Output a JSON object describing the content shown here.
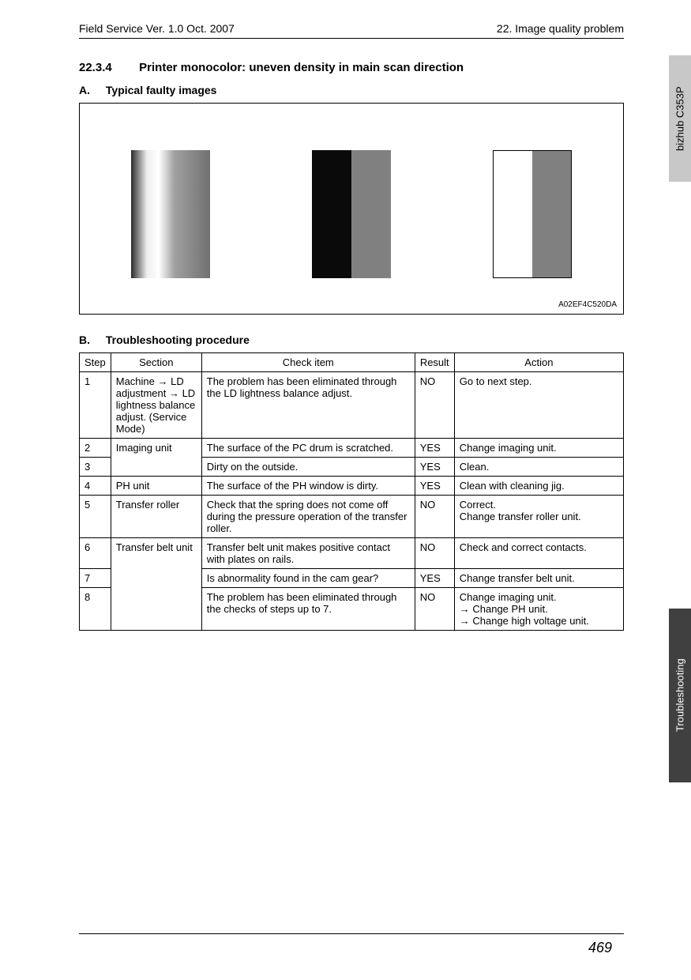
{
  "header": {
    "left": "Field Service Ver. 1.0 Oct. 2007",
    "right": "22. Image quality problem"
  },
  "section": {
    "number": "22.3.4",
    "title": "Printer monocolor: uneven density in main scan direction"
  },
  "subA": {
    "letter": "A.",
    "title": "Typical faulty images"
  },
  "subB": {
    "letter": "B.",
    "title": "Troubleshooting procedure"
  },
  "figure": {
    "code": "A02EF4C520DA"
  },
  "tabs": {
    "top": "bizhub C353P",
    "bottom": "Troubleshooting"
  },
  "pageNumber": "469",
  "table": {
    "headers": {
      "step": "Step",
      "section": "Section",
      "check": "Check item",
      "result": "Result",
      "action": "Action"
    },
    "rows": [
      {
        "step": "1",
        "section": "Machine → LD adjustment → LD lightness balance adjust. (Service Mode)",
        "check": "The problem has been eliminated through the LD lightness balance adjust.",
        "result": "NO",
        "action": "Go to next step."
      },
      {
        "step": "2",
        "section": "Imaging unit",
        "check": "The surface of the PC drum is scratched.",
        "result": "YES",
        "action": "Change imaging unit."
      },
      {
        "step": "3",
        "section": "",
        "check": "Dirty on the outside.",
        "result": "YES",
        "action": "Clean."
      },
      {
        "step": "4",
        "section": "PH unit",
        "check": "The surface of the PH window is dirty.",
        "result": "YES",
        "action": "Clean with cleaning jig."
      },
      {
        "step": "5",
        "section": "Transfer roller",
        "check": "Check that the spring does not come off during the pressure operation of the transfer roller.",
        "result": "NO",
        "action": "Correct.\nChange transfer roller unit."
      },
      {
        "step": "6",
        "section": "Transfer belt unit",
        "check": "Transfer belt unit makes positive contact with plates on rails.",
        "result": "NO",
        "action": "Check and correct contacts."
      },
      {
        "step": "7",
        "section": "",
        "check": "Is abnormality found in the cam gear?",
        "result": "YES",
        "action": "Change transfer belt unit."
      },
      {
        "step": "8",
        "section": "",
        "check": "The problem has been eliminated through the checks of steps up to 7.",
        "result": "NO",
        "action": "Change imaging unit.\n→ Change PH unit.\n→ Change high voltage unit."
      }
    ]
  }
}
